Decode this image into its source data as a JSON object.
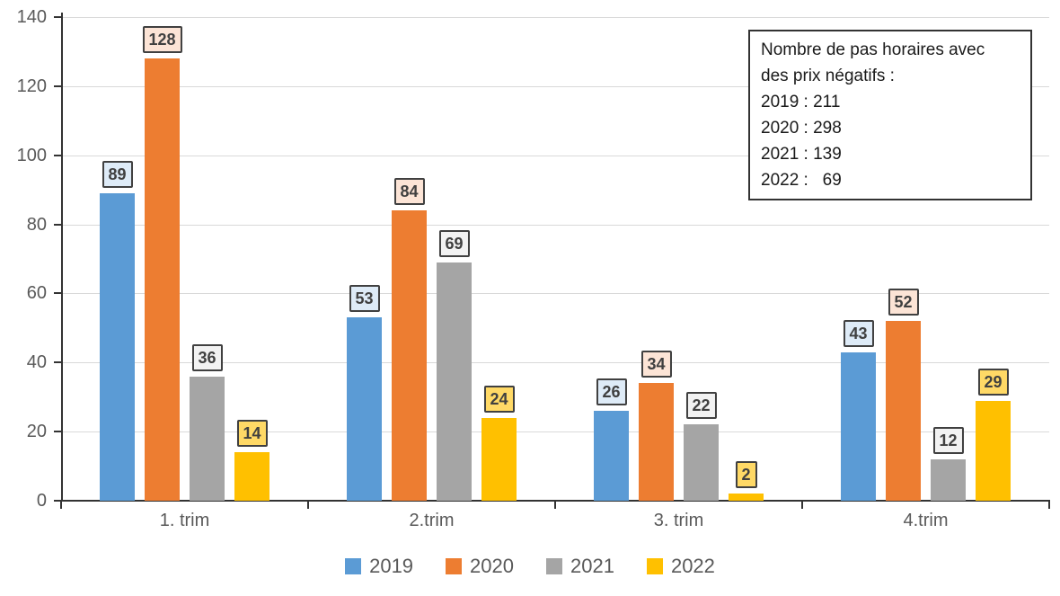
{
  "chart_data": {
    "type": "bar",
    "title": "",
    "xlabel": "",
    "ylabel": "",
    "categories": [
      "1. trim",
      "2.trim",
      "3. trim",
      "4.trim"
    ],
    "series": [
      {
        "name": "2019",
        "values": [
          89,
          53,
          26,
          43
        ],
        "color": "#5B9BD5",
        "label_fill": "#DEEBF7"
      },
      {
        "name": "2020",
        "values": [
          128,
          84,
          34,
          52
        ],
        "color": "#ED7D31",
        "label_fill": "#FCE4D6"
      },
      {
        "name": "2021",
        "values": [
          36,
          69,
          22,
          12
        ],
        "color": "#A5A5A5",
        "label_fill": "#F2F2F2"
      },
      {
        "name": "2022",
        "values": [
          14,
          24,
          2,
          29
        ],
        "color": "#FFC000",
        "label_fill": "#FFD966"
      }
    ],
    "ylim": [
      0,
      140
    ],
    "yticks": [
      0,
      20,
      40,
      60,
      80,
      100,
      120,
      140
    ],
    "grid": true,
    "legend_position": "bottom",
    "data_labels": true
  },
  "annotation": {
    "lines": [
      "Nombre de pas horaires avec",
      "des prix négatifs :",
      "2019 : 211",
      "2020 : 298",
      "2021 : 139",
      "2022 :   69"
    ]
  },
  "colors": {
    "axis": "#333333",
    "gridline": "#D9D9D9",
    "tick_label": "#595959",
    "data_label_text": "#404040",
    "data_label_border": "#404040"
  }
}
